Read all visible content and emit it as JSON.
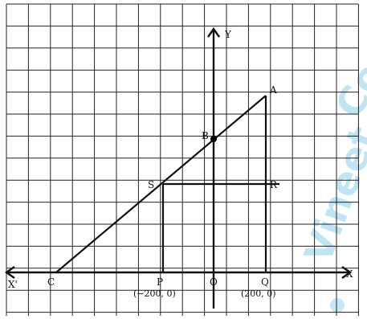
{
  "watermark": {
    "line1": "Vineet",
    "line2": "Co",
    "color": "#8fcfea"
  },
  "axes": {
    "x_pos": "X",
    "x_neg": "X'",
    "y_pos": "Y"
  },
  "points": {
    "A": "A",
    "B": "B",
    "C": "C",
    "O": "O",
    "P": "P",
    "Q": "Q",
    "R": "R",
    "S": "S"
  },
  "coordinates": {
    "P": "(−200, 0)",
    "Q": "(200, 0)"
  },
  "colors": {
    "grid": "#222222",
    "lines": "#111111",
    "point": "#000000"
  }
}
